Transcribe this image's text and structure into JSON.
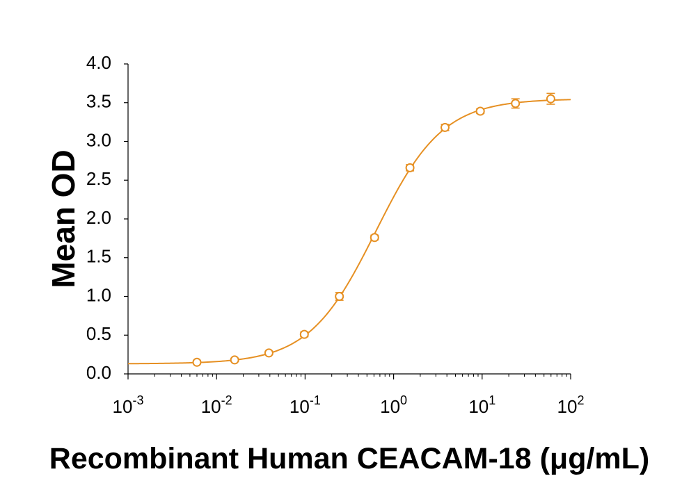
{
  "chart_data": {
    "type": "scatter",
    "xlabel": "Recombinant Human CEACAM-18 (μg/mL)",
    "ylabel": "Mean OD",
    "x_scale": "log",
    "xlim": [
      0.001,
      100
    ],
    "ylim": [
      0,
      4
    ],
    "x_ticks": [
      {
        "value": 0.001,
        "base": "10",
        "exp": "-3"
      },
      {
        "value": 0.01,
        "base": "10",
        "exp": "-2"
      },
      {
        "value": 0.1,
        "base": "10",
        "exp": "-1"
      },
      {
        "value": 1,
        "base": "10",
        "exp": "0"
      },
      {
        "value": 10,
        "base": "10",
        "exp": "1"
      },
      {
        "value": 100,
        "base": "10",
        "exp": "2"
      }
    ],
    "y_ticks": [
      "0.0",
      "0.5",
      "1.0",
      "1.5",
      "2.0",
      "2.5",
      "3.0",
      "3.5",
      "4.0"
    ],
    "grid": false,
    "series": [
      {
        "points": [
          {
            "x": 0.006,
            "y": 0.15,
            "err": 0.02
          },
          {
            "x": 0.016,
            "y": 0.18,
            "err": 0.02
          },
          {
            "x": 0.039,
            "y": 0.27,
            "err": 0.02
          },
          {
            "x": 0.098,
            "y": 0.51,
            "err": 0.03
          },
          {
            "x": 0.244,
            "y": 1.0,
            "err": 0.05
          },
          {
            "x": 0.61,
            "y": 1.76,
            "err": 0.03
          },
          {
            "x": 1.53,
            "y": 2.66,
            "err": 0.04
          },
          {
            "x": 3.81,
            "y": 3.18,
            "err": 0.04
          },
          {
            "x": 9.54,
            "y": 3.39,
            "err": 0.03
          },
          {
            "x": 23.8,
            "y": 3.49,
            "err": 0.06
          },
          {
            "x": 59.6,
            "y": 3.55,
            "err": 0.07
          }
        ],
        "fit": {
          "model": "4PL",
          "bottom": 0.13,
          "top": 3.55,
          "ec50": 0.63,
          "hill": 1.15
        }
      }
    ],
    "colors": {
      "series": "#E69023",
      "axis": "#000000"
    }
  }
}
